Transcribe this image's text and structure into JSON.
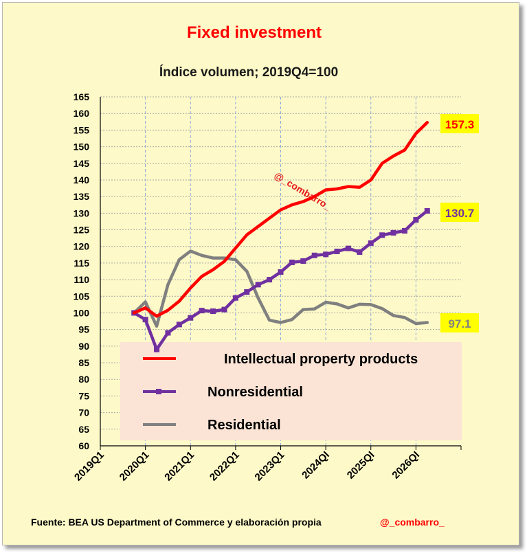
{
  "chart_data": {
    "type": "line",
    "title": "Fixed investment",
    "subtitle": "Índice volumen; 2019Q4=100",
    "ylim": [
      60,
      165
    ],
    "y_ticks": [
      60,
      65,
      70,
      75,
      80,
      85,
      90,
      95,
      100,
      105,
      110,
      115,
      120,
      125,
      130,
      135,
      140,
      145,
      150,
      155,
      160,
      165
    ],
    "x_tick_labels": [
      "2019Q1",
      "2020Q1",
      "2021Q1",
      "2022Q1",
      "2023Q1",
      "2024QI",
      "2025QI",
      "2026QI"
    ],
    "x_start": "2019Q1",
    "x": [
      "2019Q4",
      "2020Q1",
      "2020Q2",
      "2020Q3",
      "2020Q4",
      "2021Q1",
      "2021Q2",
      "2021Q3",
      "2021Q4",
      "2022Q1",
      "2022Q2",
      "2022Q3",
      "2022Q4",
      "2023Q1",
      "2023Q2",
      "2023Q3",
      "2023Q4",
      "2024Q1",
      "2024Q2",
      "2024Q3",
      "2024Q4",
      "2025Q1",
      "2025Q2",
      "2025Q3",
      "2025Q4",
      "2026Q1",
      "2026Q2"
    ],
    "grid": true,
    "legend_position": "bottom-center",
    "series": [
      {
        "name": "Intellectual property products",
        "color": "#ff0000",
        "marker": false,
        "values": [
          100,
          101.5,
          99,
          100.8,
          103.5,
          107.5,
          111,
          113,
          115.5,
          119.5,
          123.5,
          126,
          128.5,
          131,
          132.5,
          133.5,
          135,
          137,
          137.3,
          138,
          137.8,
          140,
          145,
          147.2,
          149,
          154,
          157.3
        ]
      },
      {
        "name": "Nonresidential",
        "color": "#7030a0",
        "marker": true,
        "values": [
          100,
          98,
          89,
          94,
          96.5,
          98.5,
          100.7,
          100.5,
          101,
          104.5,
          106.3,
          108.5,
          110,
          112.3,
          115.2,
          115.6,
          117.3,
          117.6,
          118.5,
          119.4,
          118.3,
          121,
          123.4,
          124.1,
          124.7,
          128,
          130.7
        ]
      },
      {
        "name": "Residential",
        "color": "#808080",
        "marker": false,
        "values": [
          100,
          103.3,
          96,
          108.5,
          116,
          118.6,
          117.3,
          116.5,
          116.5,
          116,
          112.5,
          104.5,
          97.8,
          97.1,
          98,
          101,
          101.2,
          103.2,
          102.7,
          101.5,
          102.6,
          102.5,
          101.3,
          99.2,
          98.6,
          96.8,
          97.1
        ]
      }
    ],
    "end_labels": [
      "157.3",
      "130.7",
      "97.1"
    ],
    "watermark": "@_combarro_",
    "source": "Fuente: BEA US Department of Commerce y elaboración propia",
    "handle": "@_combarro_"
  }
}
